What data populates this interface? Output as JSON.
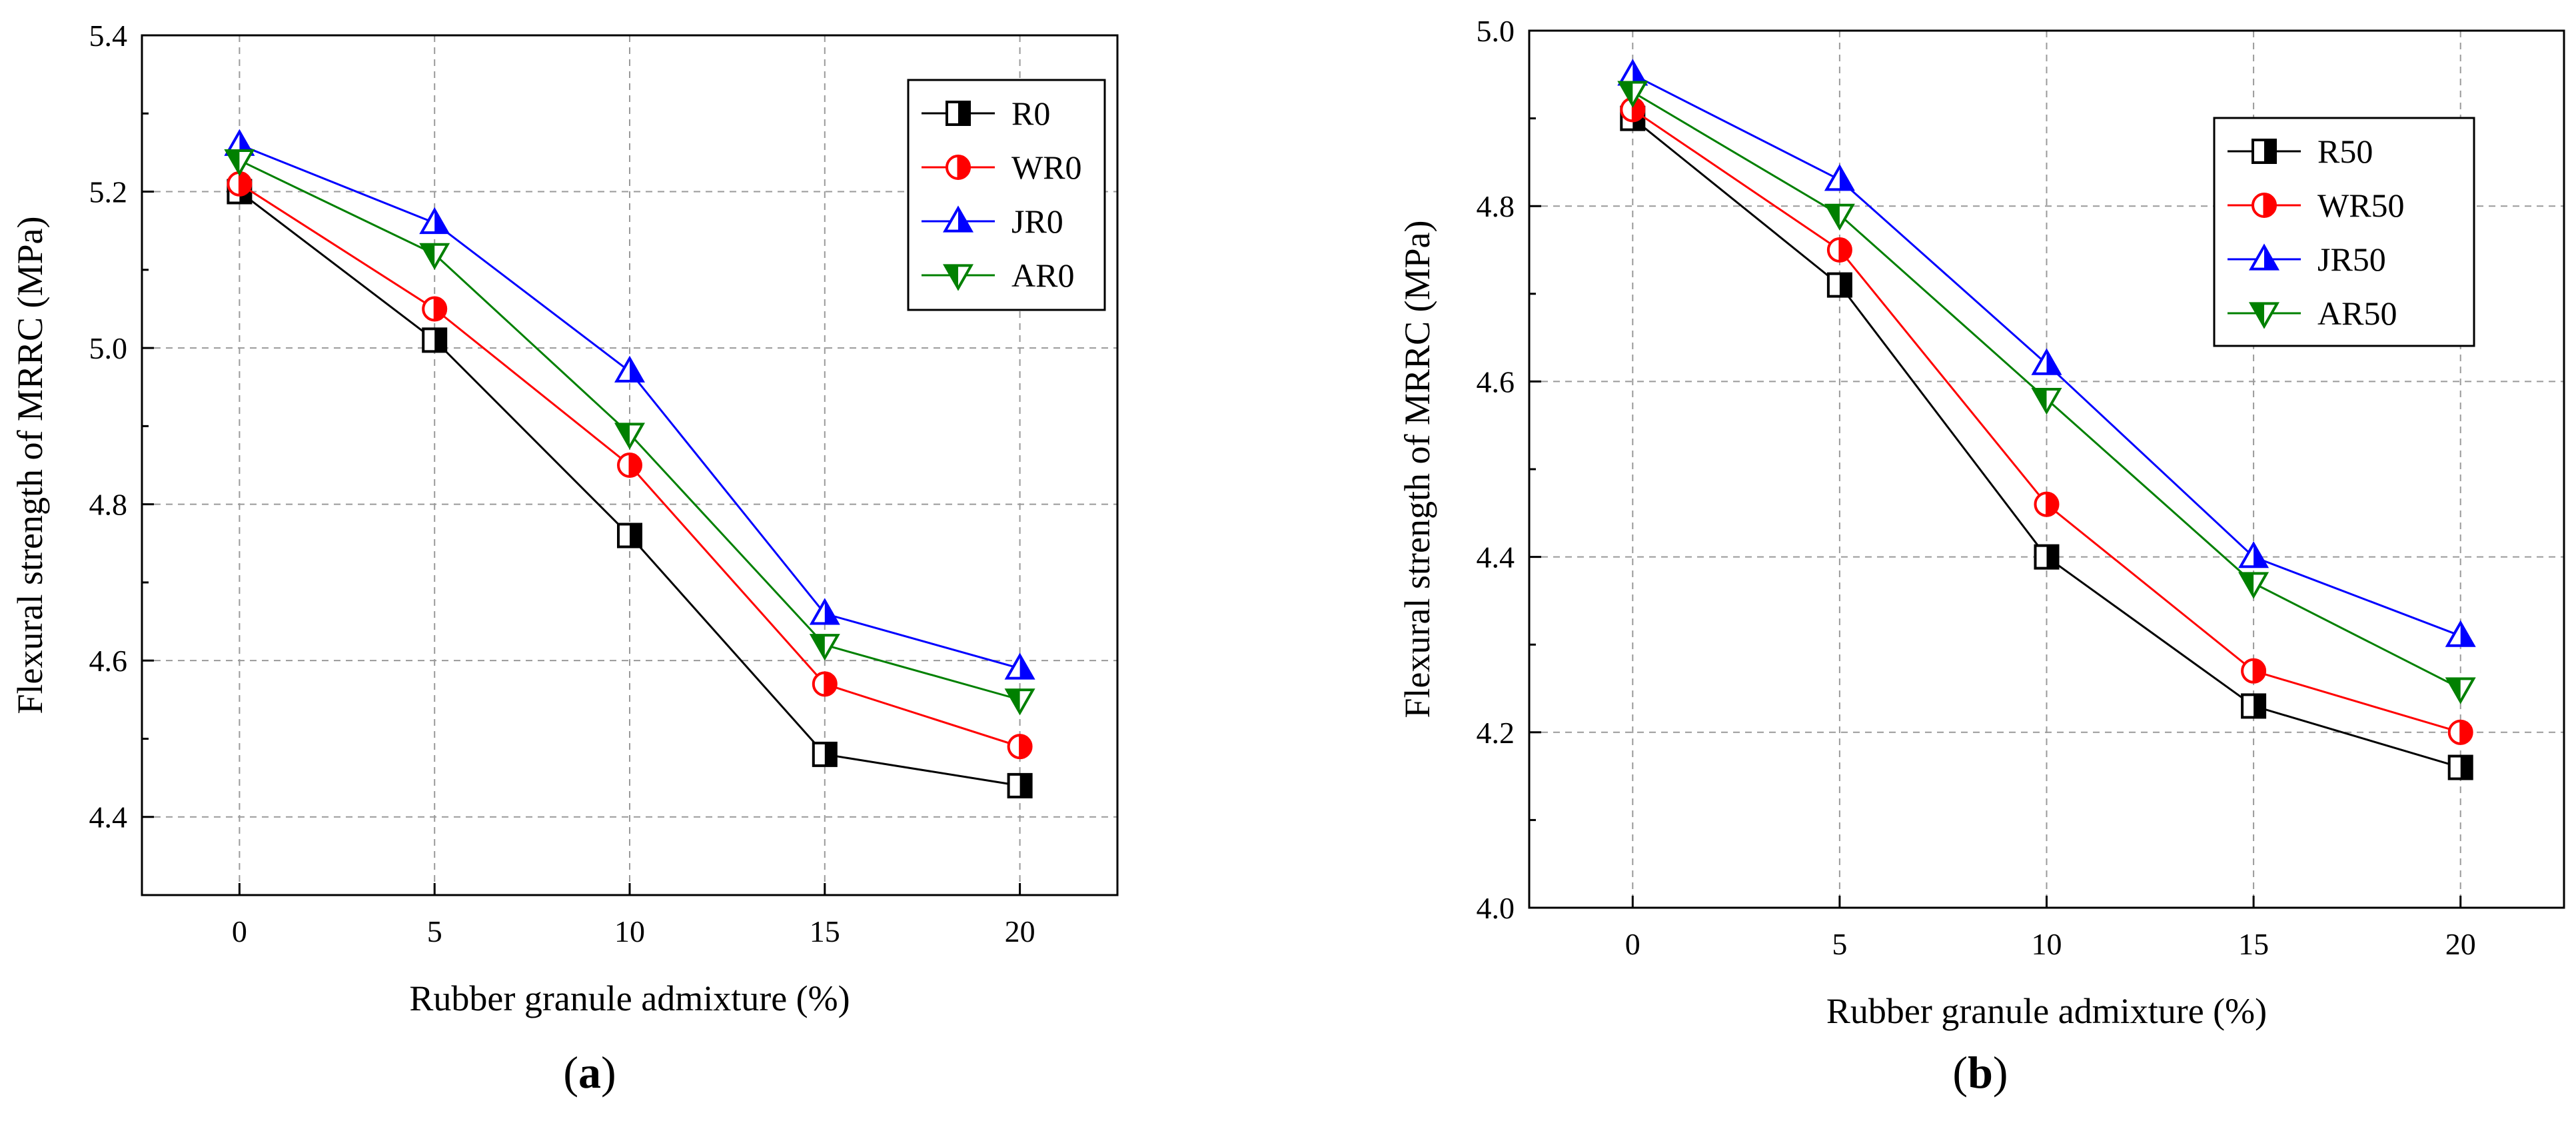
{
  "chart_data": [
    {
      "type": "line",
      "panel_label": "a",
      "title": "",
      "xlabel": "Rubber granule admixture (%)",
      "ylabel": "Flexural strength of MRRC (MPa)",
      "x": [
        0,
        5,
        10,
        15,
        20
      ],
      "x_ticks": [
        "0",
        "5",
        "10",
        "15",
        "20"
      ],
      "xlim": [
        -2.5,
        22.5
      ],
      "ylim": [
        4.3,
        5.4
      ],
      "y_ticks": [
        "4.4",
        "4.6",
        "4.8",
        "5.0",
        "5.2",
        "5.4"
      ],
      "grid": true,
      "legend_position": "top-right",
      "series": [
        {
          "name": "R0",
          "color": "#000000",
          "marker": "square-half",
          "values": [
            5.2,
            5.01,
            4.76,
            4.48,
            4.44
          ]
        },
        {
          "name": "WR0",
          "color": "#ff0000",
          "marker": "circle-half",
          "values": [
            5.21,
            5.05,
            4.85,
            4.57,
            4.49
          ]
        },
        {
          "name": "JR0",
          "color": "#0000ff",
          "marker": "triangle-up-half",
          "values": [
            5.26,
            5.16,
            4.97,
            4.66,
            4.59
          ]
        },
        {
          "name": "AR0",
          "color": "#008000",
          "marker": "triangle-down-half",
          "values": [
            5.24,
            5.12,
            4.89,
            4.62,
            4.55
          ]
        }
      ]
    },
    {
      "type": "line",
      "panel_label": "b",
      "title": "",
      "xlabel": "Rubber granule admixture (%)",
      "ylabel": "Flexural strength of MRRC (MPa)",
      "x": [
        0,
        5,
        10,
        15,
        20
      ],
      "x_ticks": [
        "0",
        "5",
        "10",
        "15",
        "20"
      ],
      "xlim": [
        -2.5,
        22.5
      ],
      "ylim": [
        4.0,
        5.0
      ],
      "y_ticks": [
        "4.0",
        "4.2",
        "4.4",
        "4.6",
        "4.8",
        "5.0"
      ],
      "grid": true,
      "legend_position": "top-right",
      "series": [
        {
          "name": "R50",
          "color": "#000000",
          "marker": "square-half",
          "values": [
            4.9,
            4.71,
            4.4,
            4.23,
            4.16
          ]
        },
        {
          "name": "WR50",
          "color": "#ff0000",
          "marker": "circle-half",
          "values": [
            4.91,
            4.75,
            4.46,
            4.27,
            4.2
          ]
        },
        {
          "name": "JR50",
          "color": "#0000ff",
          "marker": "triangle-up-half",
          "values": [
            4.95,
            4.83,
            4.62,
            4.4,
            4.31
          ]
        },
        {
          "name": "AR50",
          "color": "#008000",
          "marker": "triangle-down-half",
          "values": [
            4.93,
            4.79,
            4.58,
            4.37,
            4.25
          ]
        }
      ]
    }
  ]
}
